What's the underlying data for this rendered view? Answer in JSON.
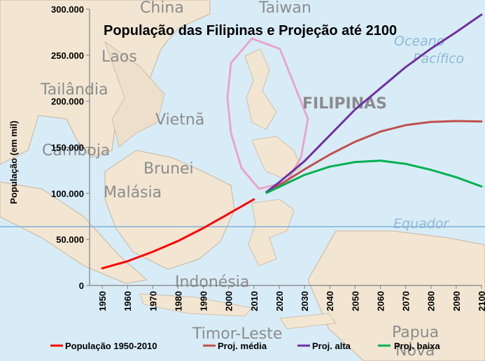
{
  "chart_data": {
    "type": "line",
    "title": "População das Filipinas e Projeção até 2100",
    "ylabel": "População (em mil)",
    "xlabel": "",
    "xlim": [
      1945,
      2100
    ],
    "ylim": [
      0,
      300000
    ],
    "x_ticks": [
      1950,
      1960,
      1970,
      1980,
      1990,
      2000,
      2010,
      2020,
      2030,
      2040,
      2050,
      2060,
      2070,
      2080,
      2090,
      2100
    ],
    "y_ticks": [
      {
        "value": 0,
        "label": "0"
      },
      {
        "value": 50000,
        "label": "50.000"
      },
      {
        "value": 100000,
        "label": "100.000"
      },
      {
        "value": 150000,
        "label": "150.000"
      },
      {
        "value": 200000,
        "label": "200.000"
      },
      {
        "value": 250000,
        "label": "250.000"
      },
      {
        "value": 300000,
        "label": "300.000"
      }
    ],
    "grid": false,
    "legend_position": "bottom",
    "series": [
      {
        "name": "População 1950-2010",
        "color": "#ff0000",
        "x": [
          1950,
          1960,
          1970,
          1980,
          1990,
          2000,
          2010
        ],
        "y": [
          18600,
          26300,
          36500,
          48300,
          62300,
          77800,
          93500
        ]
      },
      {
        "name": "Proj. média",
        "color": "#c0504d",
        "x": [
          2015,
          2020,
          2030,
          2040,
          2050,
          2060,
          2070,
          2080,
          2090,
          2100
        ],
        "y": [
          101000,
          109000,
          126000,
          142000,
          156000,
          167000,
          174000,
          177500,
          178500,
          178000
        ]
      },
      {
        "name": "Proj. alta",
        "color": "#7030a0",
        "x": [
          2015,
          2020,
          2030,
          2040,
          2050,
          2060,
          2070,
          2080,
          2090,
          2100
        ],
        "y": [
          101500,
          112000,
          135000,
          163000,
          191000,
          214000,
          237000,
          257000,
          275000,
          294000
        ]
      },
      {
        "name": "Proj. baixa",
        "color": "#00b050",
        "x": [
          2015,
          2020,
          2030,
          2040,
          2050,
          2060,
          2070,
          2080,
          2090,
          2100
        ],
        "y": [
          100500,
          107000,
          120000,
          129000,
          134000,
          135500,
          132000,
          125500,
          117500,
          107500
        ]
      }
    ]
  },
  "map_labels": [
    "China",
    "Taiwan",
    "Laos",
    "Tailândia",
    "Vietnã",
    "Camboja",
    "Brunei",
    "Malásia",
    "FILIPINAS",
    "Indonésia",
    "Timor-Leste",
    "Papua",
    "Nova",
    "Oceano",
    "Pacífico",
    "Equador"
  ]
}
